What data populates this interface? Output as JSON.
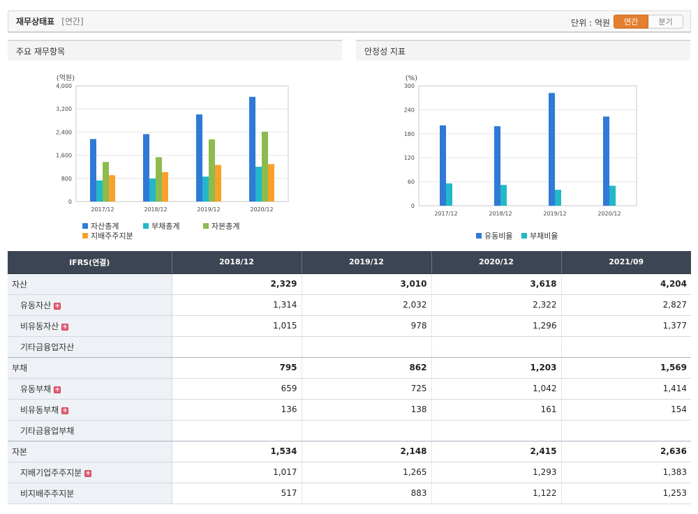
{
  "header": {
    "title": "재무상태표",
    "period_tag": "[연간]",
    "unit_label": "단위 : 억원",
    "toggle_annual": "연간",
    "toggle_quarter": "분기"
  },
  "colors": {
    "toggle_active": "#e47f2f",
    "series_blue": "#2f7ad6",
    "series_teal": "#23b8c9",
    "series_green": "#8cbb4e",
    "series_orange": "#f7a12c",
    "table_header": "#3c4553"
  },
  "chart_panels": {
    "left_title": "주요 재무항목",
    "right_title": "안정성 지표"
  },
  "chart_data": [
    {
      "type": "bar",
      "title": "",
      "ylabel": "(억원)",
      "categories": [
        "2017/12",
        "2018/12",
        "2019/12",
        "2020/12"
      ],
      "ylim": [
        0,
        4000
      ],
      "yticks": [
        "0",
        "800",
        "1,600",
        "2,400",
        "3,200",
        "4,000"
      ],
      "grid": true,
      "legend_position": "bottom-left",
      "series": [
        {
          "name": "자산총계",
          "color": "#2f7ad6",
          "values": [
            2160,
            2329,
            3010,
            3618
          ]
        },
        {
          "name": "부채총계",
          "color": "#23b8c9",
          "values": [
            730,
            795,
            862,
            1203
          ]
        },
        {
          "name": "자본총계",
          "color": "#8cbb4e",
          "values": [
            1370,
            1534,
            2148,
            2415
          ]
        },
        {
          "name": "지배주주지분",
          "color": "#f7a12c",
          "values": [
            910,
            1017,
            1265,
            1293
          ]
        }
      ]
    },
    {
      "type": "bar",
      "title": "",
      "ylabel": "(%)",
      "categories": [
        "2017/12",
        "2018/12",
        "2019/12",
        "2020/12"
      ],
      "ylim": [
        0,
        300
      ],
      "yticks": [
        "0",
        "60",
        "120",
        "180",
        "240",
        "300"
      ],
      "grid": true,
      "legend_position": "bottom-center",
      "series": [
        {
          "name": "유동비율",
          "color": "#2f7ad6",
          "values": [
            201,
            199,
            282,
            223
          ]
        },
        {
          "name": "부채비율",
          "color": "#23b8c9",
          "values": [
            56,
            52,
            40,
            50
          ]
        }
      ]
    }
  ],
  "table": {
    "header_label": "IFRS(연결)",
    "columns": [
      "2018/12",
      "2019/12",
      "2020/12",
      "2021/09"
    ],
    "rows": [
      {
        "label": "자산",
        "level": 0,
        "expand": false,
        "values": [
          "2,329",
          "3,010",
          "3,618",
          "4,204"
        ]
      },
      {
        "label": "유동자산",
        "level": 1,
        "expand": true,
        "values": [
          "1,314",
          "2,032",
          "2,322",
          "2,827"
        ]
      },
      {
        "label": "비유동자산",
        "level": 1,
        "expand": true,
        "values": [
          "1,015",
          "978",
          "1,296",
          "1,377"
        ]
      },
      {
        "label": "기타금융업자산",
        "level": 1,
        "expand": false,
        "values": [
          "",
          "",
          "",
          ""
        ]
      },
      {
        "label": "부채",
        "level": 0,
        "expand": false,
        "values": [
          "795",
          "862",
          "1,203",
          "1,569"
        ]
      },
      {
        "label": "유동부채",
        "level": 1,
        "expand": true,
        "values": [
          "659",
          "725",
          "1,042",
          "1,414"
        ]
      },
      {
        "label": "비유동부채",
        "level": 1,
        "expand": true,
        "values": [
          "136",
          "138",
          "161",
          "154"
        ]
      },
      {
        "label": "기타금융업부채",
        "level": 1,
        "expand": false,
        "values": [
          "",
          "",
          "",
          ""
        ]
      },
      {
        "label": "자본",
        "level": 0,
        "expand": false,
        "values": [
          "1,534",
          "2,148",
          "2,415",
          "2,636"
        ]
      },
      {
        "label": "지배기업주주지분",
        "level": 1,
        "expand": true,
        "values": [
          "1,017",
          "1,265",
          "1,293",
          "1,383"
        ]
      },
      {
        "label": "비지배주주지분",
        "level": 1,
        "expand": false,
        "values": [
          "517",
          "883",
          "1,122",
          "1,253"
        ]
      }
    ]
  }
}
